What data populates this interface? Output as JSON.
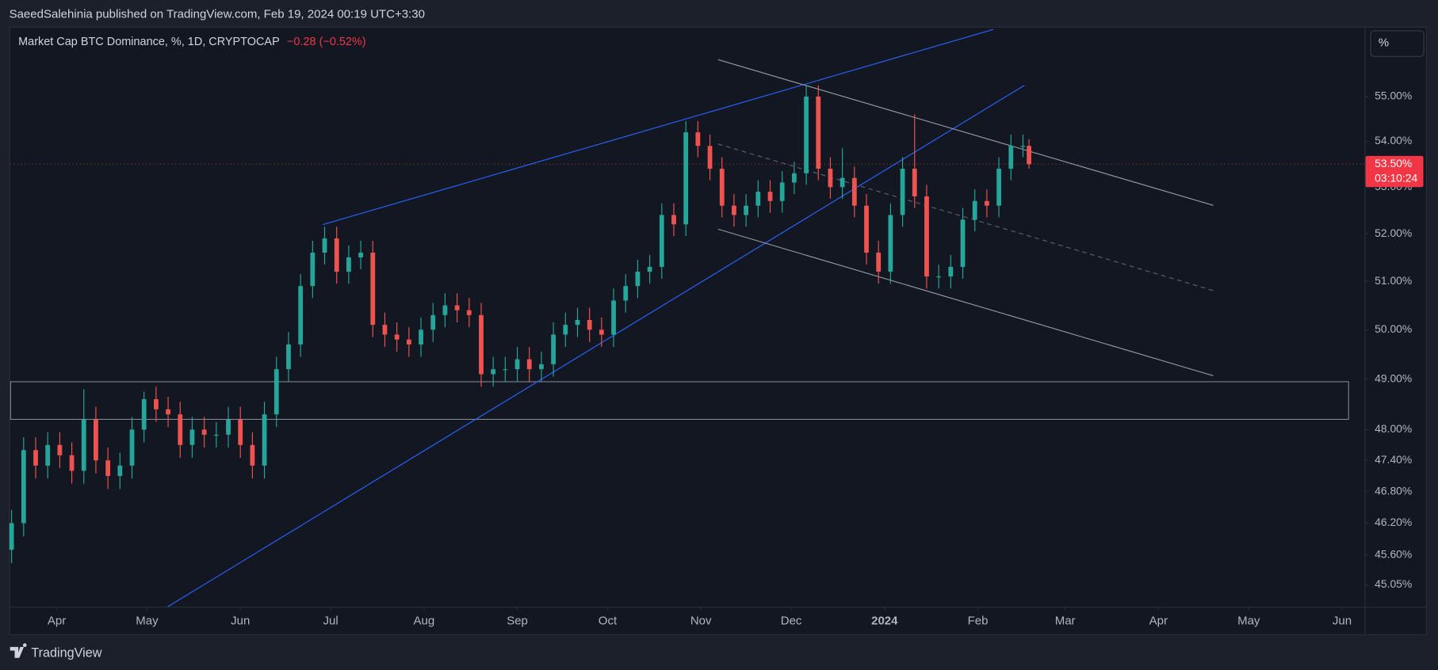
{
  "header": {
    "byline": "SaeedSalehinia published on TradingView.com, Feb 19, 2024 00:19 UTC+3:30"
  },
  "footer": {
    "brand": "TradingView"
  },
  "chart_data": {
    "type": "candlestick",
    "title": "Market Cap BTC Dominance, %, 1D, CRYPTOCAP",
    "change_label": "−0.28 (−0.52%)",
    "scale_button": "%",
    "last_price_label": "53.50%",
    "countdown": "03:10:24",
    "up_color": "#26a69a",
    "down_color": "#ef5350",
    "log_scale": true,
    "grid": false,
    "x": [
      -15,
      -11,
      -7,
      -3,
      1,
      5,
      9,
      13,
      17,
      21,
      25,
      29,
      33,
      37,
      41,
      45,
      49,
      53,
      57,
      61,
      65,
      69,
      73,
      77,
      81,
      85,
      89,
      93,
      97,
      101,
      105,
      109,
      113,
      117,
      121,
      125,
      129,
      133,
      137,
      141,
      145,
      149,
      153,
      157,
      161,
      165,
      169,
      173,
      177,
      181,
      185,
      189,
      193,
      197,
      201,
      205,
      209,
      213,
      217,
      221,
      225,
      229,
      233,
      237,
      241,
      245,
      249,
      253,
      257,
      261,
      265,
      269,
      273,
      277,
      281,
      285,
      289,
      293,
      297,
      301,
      305,
      309,
      313,
      317,
      321,
      323
    ],
    "open": [
      45.7,
      46.2,
      47.6,
      47.3,
      47.7,
      47.5,
      47.2,
      48.2,
      47.4,
      47.1,
      47.3,
      48.0,
      48.6,
      48.4,
      48.3,
      47.7,
      48.0,
      47.9,
      47.9,
      48.2,
      47.7,
      47.3,
      48.3,
      49.2,
      49.7,
      50.9,
      51.6,
      51.9,
      51.2,
      51.5,
      51.6,
      50.1,
      49.9,
      49.8,
      49.7,
      50.0,
      50.3,
      50.5,
      50.4,
      50.3,
      49.1,
      49.2,
      49.2,
      49.4,
      49.2,
      49.3,
      49.9,
      50.1,
      50.2,
      50.0,
      49.9,
      50.6,
      50.9,
      51.2,
      51.3,
      52.4,
      52.2,
      54.2,
      53.9,
      53.4,
      52.6,
      52.4,
      52.6,
      52.9,
      52.7,
      53.1,
      53.3,
      55.0,
      53.4,
      53.0,
      53.2,
      52.6,
      51.6,
      51.2,
      52.4,
      53.4,
      52.8,
      51.1,
      51.1,
      51.3,
      52.3,
      52.7,
      52.6,
      53.4,
      53.9,
      53.9
    ],
    "high": [
      46.45,
      47.85,
      47.85,
      47.95,
      47.95,
      47.75,
      48.8,
      48.45,
      47.65,
      47.55,
      48.25,
      48.75,
      48.85,
      48.65,
      48.55,
      48.25,
      48.25,
      48.15,
      48.45,
      48.45,
      47.95,
      48.55,
      49.45,
      49.95,
      51.15,
      51.85,
      52.15,
      52.15,
      51.75,
      51.85,
      51.85,
      50.35,
      50.15,
      50.05,
      50.25,
      50.55,
      50.75,
      50.75,
      50.65,
      50.55,
      49.45,
      49.45,
      49.65,
      49.65,
      49.55,
      50.15,
      50.35,
      50.45,
      50.45,
      50.25,
      50.85,
      51.15,
      51.45,
      51.55,
      52.65,
      52.65,
      54.45,
      54.45,
      54.15,
      53.65,
      52.85,
      52.85,
      53.15,
      53.15,
      53.35,
      53.55,
      55.25,
      55.25,
      53.65,
      53.85,
      53.45,
      52.85,
      51.85,
      52.65,
      53.65,
      54.6,
      53.05,
      51.35,
      51.55,
      52.55,
      52.95,
      52.95,
      53.65,
      54.15,
      54.15,
      54.05
    ],
    "low": [
      45.45,
      45.95,
      47.05,
      47.05,
      47.25,
      46.95,
      46.95,
      47.15,
      46.85,
      46.85,
      47.05,
      47.75,
      48.15,
      48.05,
      47.45,
      47.45,
      47.65,
      47.65,
      47.65,
      47.45,
      47.05,
      47.05,
      48.05,
      48.95,
      49.45,
      50.65,
      51.35,
      50.95,
      50.95,
      51.25,
      49.85,
      49.65,
      49.55,
      49.45,
      49.45,
      49.75,
      50.05,
      50.15,
      50.05,
      48.85,
      48.85,
      48.95,
      48.95,
      48.95,
      48.95,
      49.05,
      49.65,
      49.85,
      49.75,
      49.65,
      49.65,
      50.35,
      50.65,
      50.95,
      51.05,
      51.95,
      51.95,
      53.65,
      53.15,
      52.35,
      52.15,
      52.15,
      52.35,
      52.45,
      52.45,
      52.85,
      53.05,
      53.15,
      52.75,
      52.75,
      52.35,
      51.35,
      50.95,
      50.95,
      52.15,
      52.55,
      50.85,
      50.85,
      50.85,
      51.05,
      52.05,
      52.35,
      52.35,
      53.15,
      53.65,
      53.4
    ],
    "close": [
      46.2,
      47.6,
      47.3,
      47.7,
      47.5,
      47.2,
      48.2,
      47.4,
      47.1,
      47.3,
      48.0,
      48.6,
      48.4,
      48.3,
      47.7,
      48.0,
      47.9,
      47.9,
      48.2,
      47.7,
      47.3,
      48.3,
      49.2,
      49.7,
      50.9,
      51.6,
      51.9,
      51.2,
      51.5,
      51.6,
      50.1,
      49.9,
      49.8,
      49.7,
      50.0,
      50.3,
      50.5,
      50.4,
      50.3,
      49.1,
      49.2,
      49.2,
      49.4,
      49.2,
      49.3,
      49.9,
      50.1,
      50.2,
      50.0,
      49.9,
      50.6,
      50.9,
      51.2,
      51.3,
      52.4,
      52.2,
      54.2,
      53.9,
      53.4,
      52.6,
      52.4,
      52.6,
      52.9,
      52.7,
      53.1,
      53.3,
      55.0,
      53.4,
      53.0,
      53.2,
      52.6,
      51.6,
      51.2,
      52.4,
      53.4,
      52.8,
      51.1,
      51.1,
      51.3,
      52.3,
      52.7,
      52.6,
      53.4,
      53.9,
      53.9,
      53.5
    ],
    "xlim": [
      -15.5,
      434.5
    ],
    "xticks": [
      {
        "value": 0,
        "label": "Apr"
      },
      {
        "value": 30,
        "label": "May"
      },
      {
        "value": 61,
        "label": "Jun"
      },
      {
        "value": 91,
        "label": "Jul"
      },
      {
        "value": 122,
        "label": "Aug"
      },
      {
        "value": 153,
        "label": "Sep"
      },
      {
        "value": 183,
        "label": "Oct"
      },
      {
        "value": 214,
        "label": "Nov"
      },
      {
        "value": 244,
        "label": "Dec"
      },
      {
        "value": 275,
        "label": "2024"
      },
      {
        "value": 306,
        "label": "Feb"
      },
      {
        "value": 335,
        "label": "Mar"
      },
      {
        "value": 366,
        "label": "Apr"
      },
      {
        "value": 396,
        "label": "May"
      },
      {
        "value": 427,
        "label": "Jun"
      }
    ],
    "ylim": [
      44.65,
      56.57
    ],
    "yticks": [
      {
        "value": 55,
        "label": "55.00%"
      },
      {
        "value": 54,
        "label": "54.00%"
      },
      {
        "value": 53,
        "label": "53.00%"
      },
      {
        "value": 52,
        "label": "52.00%"
      },
      {
        "value": 51,
        "label": "51.00%"
      },
      {
        "value": 50,
        "label": "50.00%"
      },
      {
        "value": 49,
        "label": "49.00%"
      },
      {
        "value": 48,
        "label": "48.00%"
      },
      {
        "value": 47.4,
        "label": "47.40%"
      },
      {
        "value": 46.8,
        "label": "46.80%"
      },
      {
        "value": 46.2,
        "label": "46.20%"
      },
      {
        "value": 45.6,
        "label": "45.60%"
      },
      {
        "value": 45.05,
        "label": "45.05%"
      }
    ]
  }
}
